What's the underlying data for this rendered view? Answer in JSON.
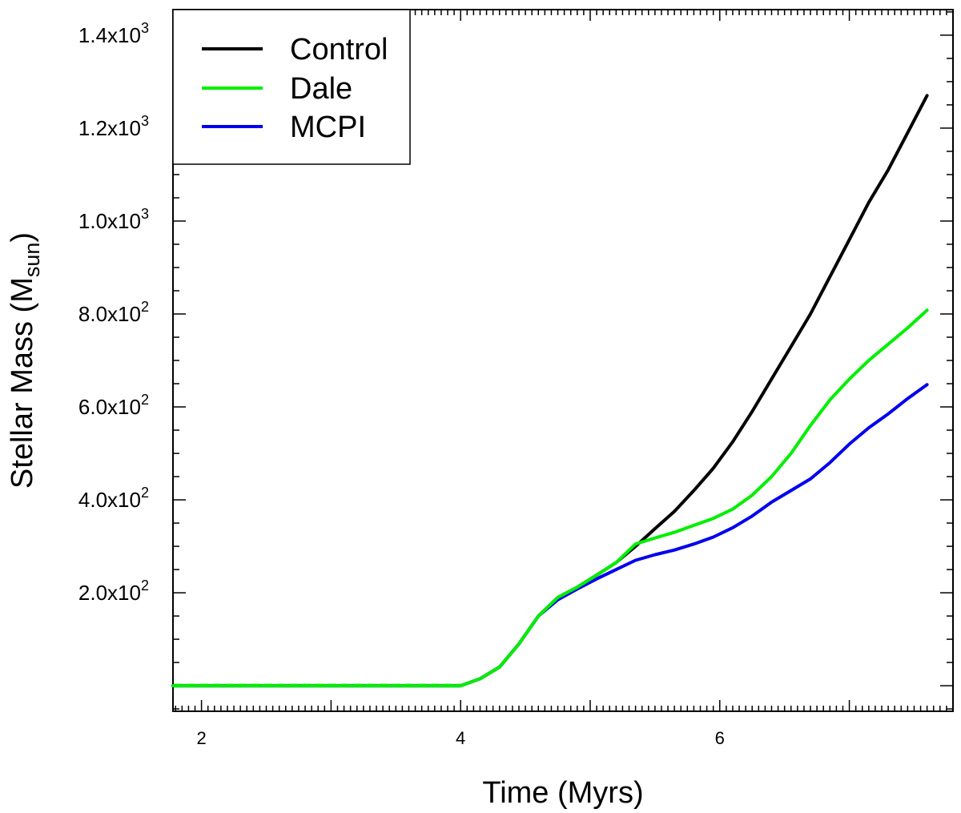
{
  "chart_data": {
    "type": "line",
    "title": "",
    "xlabel": "Time (Myrs)",
    "ylabel": {
      "main": "Stellar Mass (M",
      "sub": "sun",
      "close": ")"
    },
    "xlim": [
      1.78,
      7.8
    ],
    "ylim": [
      -55,
      1455
    ],
    "xticks": [
      {
        "value": 2,
        "label": "2"
      },
      {
        "value": 4,
        "label": "4"
      },
      {
        "value": 6,
        "label": "6"
      }
    ],
    "yticks": [
      {
        "value": 200,
        "mantissa": "2.0x10",
        "exp": "2"
      },
      {
        "value": 400,
        "mantissa": "4.0x10",
        "exp": "2"
      },
      {
        "value": 600,
        "mantissa": "6.0x10",
        "exp": "2"
      },
      {
        "value": 800,
        "mantissa": "8.0x10",
        "exp": "2"
      },
      {
        "value": 1000,
        "mantissa": "1.0x10",
        "exp": "3"
      },
      {
        "value": 1200,
        "mantissa": "1.2x10",
        "exp": "3"
      },
      {
        "value": 1400,
        "mantissa": "1.4x10",
        "exp": "3"
      }
    ],
    "legend": {
      "position": "top-left"
    },
    "series": [
      {
        "name": "Control",
        "color": "#000000",
        "x": [
          1.78,
          4.0,
          4.15,
          4.3,
          4.45,
          4.6,
          4.75,
          4.9,
          5.05,
          5.2,
          5.35,
          5.5,
          5.65,
          5.8,
          5.95,
          6.1,
          6.25,
          6.4,
          6.55,
          6.7,
          6.85,
          7.0,
          7.15,
          7.3,
          7.45,
          7.6
        ],
        "values": [
          0,
          0,
          15,
          40,
          90,
          150,
          190,
          212,
          238,
          265,
          300,
          338,
          375,
          420,
          468,
          525,
          590,
          660,
          730,
          800,
          880,
          960,
          1040,
          1110,
          1190,
          1270
        ]
      },
      {
        "name": "Dale",
        "color": "#00ee00",
        "x": [
          1.78,
          4.0,
          4.15,
          4.3,
          4.45,
          4.6,
          4.75,
          4.9,
          5.05,
          5.2,
          5.35,
          5.5,
          5.65,
          5.8,
          5.95,
          6.1,
          6.25,
          6.4,
          6.55,
          6.7,
          6.85,
          7.0,
          7.15,
          7.3,
          7.45,
          7.6
        ],
        "values": [
          0,
          0,
          15,
          40,
          90,
          150,
          190,
          212,
          238,
          265,
          305,
          318,
          330,
          345,
          360,
          380,
          410,
          450,
          500,
          560,
          615,
          660,
          700,
          735,
          770,
          808
        ]
      },
      {
        "name": "MCPI",
        "color": "#0000ee",
        "x": [
          1.78,
          4.0,
          4.15,
          4.3,
          4.45,
          4.6,
          4.75,
          4.9,
          5.05,
          5.2,
          5.35,
          5.5,
          5.65,
          5.8,
          5.95,
          6.1,
          6.25,
          6.4,
          6.55,
          6.7,
          6.85,
          7.0,
          7.15,
          7.3,
          7.45,
          7.6
        ],
        "values": [
          0,
          0,
          15,
          40,
          90,
          150,
          185,
          208,
          230,
          250,
          270,
          282,
          292,
          305,
          320,
          340,
          365,
          395,
          420,
          445,
          480,
          520,
          555,
          585,
          618,
          648
        ]
      }
    ]
  }
}
